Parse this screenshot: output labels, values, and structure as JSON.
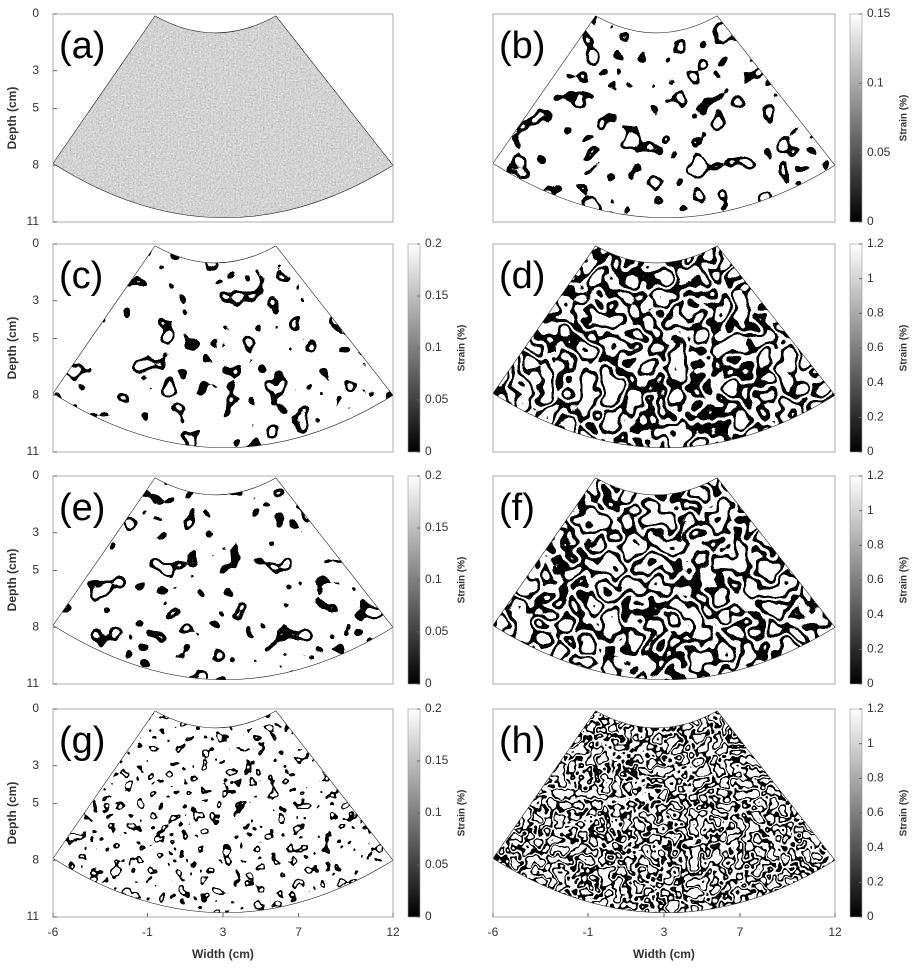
{
  "panels": [
    {
      "label": "(a)",
      "ylabel": "Depth (cm)",
      "yticks": [
        0,
        3,
        5,
        8,
        11
      ]
    },
    {
      "label": "(b)",
      "colorbar": {
        "label": "Strain (%)",
        "ticks": [
          0,
          0.05,
          0.1,
          0.15
        ]
      }
    },
    {
      "label": "(c)",
      "ylabel": "Depth (cm)",
      "yticks": [
        0,
        3,
        5,
        8,
        11
      ],
      "colorbar": {
        "label": "Strain (%)",
        "ticks": [
          0,
          0.05,
          0.1,
          0.15,
          0.2
        ]
      }
    },
    {
      "label": "(d)",
      "colorbar": {
        "label": "Strain (%)",
        "ticks": [
          0,
          0.2,
          0.4,
          0.6,
          0.8,
          1,
          1.2
        ]
      }
    },
    {
      "label": "(e)",
      "ylabel": "Depth (cm)",
      "yticks": [
        0,
        3,
        5,
        8,
        11
      ],
      "colorbar": {
        "label": "Strain (%)",
        "ticks": [
          0,
          0.05,
          0.1,
          0.15,
          0.2
        ]
      }
    },
    {
      "label": "(f)",
      "colorbar": {
        "label": "Strain (%)",
        "ticks": [
          0,
          0.2,
          0.4,
          0.6,
          0.8,
          1,
          1.2
        ]
      }
    },
    {
      "label": "(g)",
      "ylabel": "Depth (cm)",
      "yticks": [
        0,
        3,
        5,
        8,
        11
      ],
      "xlabel": "Width (cm)",
      "xticks": [
        -6,
        -1,
        3,
        7,
        12
      ],
      "colorbar": {
        "label": "Strain (%)",
        "ticks": [
          0,
          0.05,
          0.1,
          0.15,
          0.2
        ]
      }
    },
    {
      "label": "(h)",
      "xlabel": "Width (cm)",
      "xticks": [
        -6,
        -1,
        3,
        7,
        12
      ],
      "colorbar": {
        "label": "Strain (%)",
        "ticks": [
          0,
          0.2,
          0.4,
          0.6,
          0.8,
          1,
          1.2
        ]
      }
    }
  ]
}
